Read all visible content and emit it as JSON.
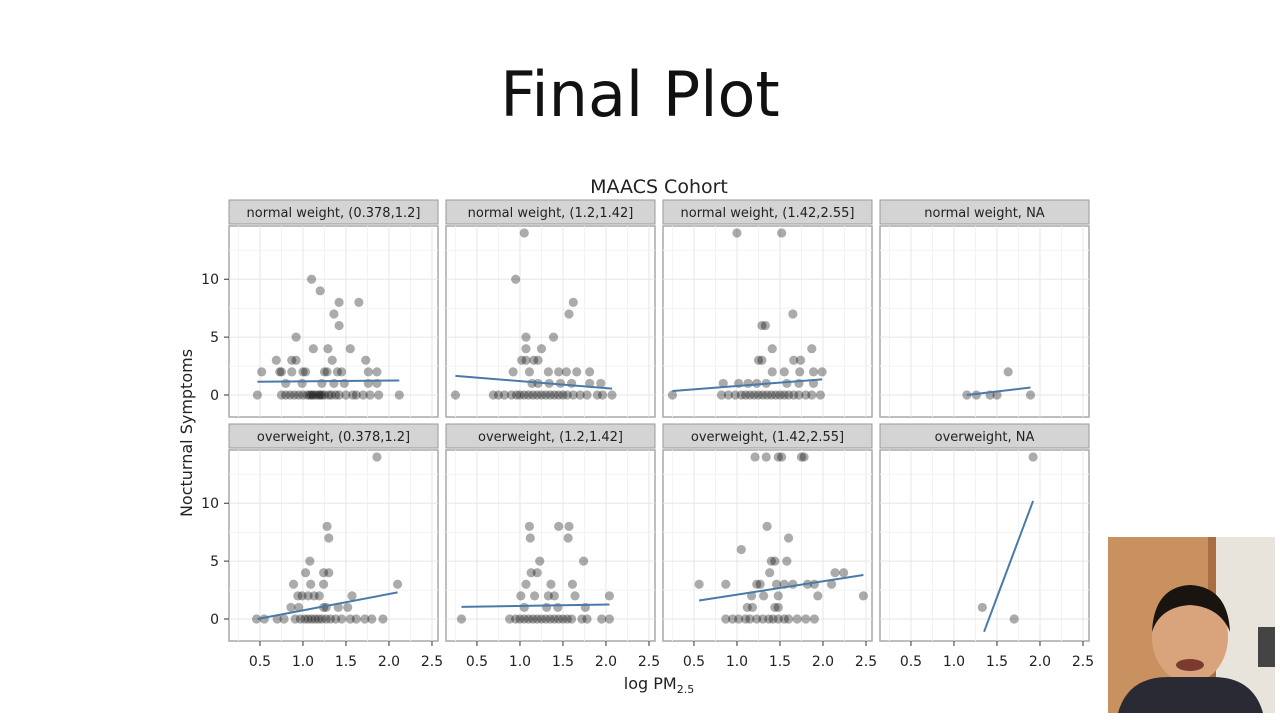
{
  "slide": {
    "title": "Final Plot"
  },
  "chart_data": {
    "type": "scatter",
    "facet": "grid 2 rows x 4 columns",
    "title": "MAACS Cohort",
    "xlabel": "log PM",
    "xlabel_subscript": "2.5",
    "ylabel": "Nocturnal Symptoms",
    "xlim": [
      0.14,
      2.57
    ],
    "ylim": [
      -1.9,
      14.6
    ],
    "xticks": [
      "0.5",
      "1.0",
      "1.5",
      "2.0",
      "2.5"
    ],
    "yticks": [
      "0",
      "5",
      "10"
    ],
    "grid": true,
    "point_color": "#000000",
    "point_alpha": 0.33,
    "line_color": "#4a7aa8",
    "strip_color": "#d4d4d4",
    "panels": [
      {
        "label": "normal weight, (0.378,1.2]",
        "points": [
          [
            1.1,
            10
          ],
          [
            1.2,
            9
          ],
          [
            1.42,
            8
          ],
          [
            1.65,
            8
          ],
          [
            1.36,
            7
          ],
          [
            1.42,
            6
          ],
          [
            0.92,
            5
          ],
          [
            1.12,
            4
          ],
          [
            1.29,
            4
          ],
          [
            1.55,
            4
          ],
          [
            0.69,
            3
          ],
          [
            0.87,
            3
          ],
          [
            0.92,
            3
          ],
          [
            1.34,
            3
          ],
          [
            1.73,
            3
          ],
          [
            0.52,
            2
          ],
          [
            0.73,
            2
          ],
          [
            0.75,
            2
          ],
          [
            0.87,
            2
          ],
          [
            1.0,
            2
          ],
          [
            1.03,
            2
          ],
          [
            1.25,
            2
          ],
          [
            1.28,
            2
          ],
          [
            1.4,
            2
          ],
          [
            1.45,
            2
          ],
          [
            1.76,
            2
          ],
          [
            1.86,
            2
          ],
          [
            0.8,
            1
          ],
          [
            0.99,
            1
          ],
          [
            1.22,
            1
          ],
          [
            1.36,
            1
          ],
          [
            1.48,
            1
          ],
          [
            1.76,
            1
          ],
          [
            1.86,
            1
          ],
          [
            0.47,
            0
          ],
          [
            0.75,
            0
          ],
          [
            0.8,
            0
          ],
          [
            0.85,
            0
          ],
          [
            0.9,
            0
          ],
          [
            0.95,
            0
          ],
          [
            1.0,
            0
          ],
          [
            1.05,
            0
          ],
          [
            1.08,
            0
          ],
          [
            1.1,
            0
          ],
          [
            1.12,
            0
          ],
          [
            1.15,
            0
          ],
          [
            1.18,
            0
          ],
          [
            1.2,
            0
          ],
          [
            1.22,
            0
          ],
          [
            1.25,
            0
          ],
          [
            1.3,
            0
          ],
          [
            1.33,
            0
          ],
          [
            1.38,
            0
          ],
          [
            1.42,
            0
          ],
          [
            1.5,
            0
          ],
          [
            1.58,
            0
          ],
          [
            1.62,
            0
          ],
          [
            1.7,
            0
          ],
          [
            1.78,
            0
          ],
          [
            1.88,
            0
          ],
          [
            2.12,
            0
          ]
        ],
        "fit": [
          [
            0.47,
            1.15
          ],
          [
            2.12,
            1.25
          ]
        ]
      },
      {
        "label": "normal weight, (1.2,1.42]",
        "points": [
          [
            1.05,
            14
          ],
          [
            0.95,
            10
          ],
          [
            1.62,
            8
          ],
          [
            1.57,
            7
          ],
          [
            1.07,
            5
          ],
          [
            1.39,
            5
          ],
          [
            1.07,
            4
          ],
          [
            1.25,
            4
          ],
          [
            1.02,
            3
          ],
          [
            1.07,
            3
          ],
          [
            1.16,
            3
          ],
          [
            1.21,
            3
          ],
          [
            0.92,
            2
          ],
          [
            1.11,
            2
          ],
          [
            1.33,
            2
          ],
          [
            1.45,
            2
          ],
          [
            1.54,
            2
          ],
          [
            1.66,
            2
          ],
          [
            1.81,
            2
          ],
          [
            1.14,
            1
          ],
          [
            1.21,
            1
          ],
          [
            1.34,
            1
          ],
          [
            1.47,
            1
          ],
          [
            1.6,
            1
          ],
          [
            1.81,
            1
          ],
          [
            1.94,
            1
          ],
          [
            0.25,
            0
          ],
          [
            0.69,
            0
          ],
          [
            0.75,
            0
          ],
          [
            0.82,
            0
          ],
          [
            0.9,
            0
          ],
          [
            0.96,
            0
          ],
          [
            1.0,
            0
          ],
          [
            1.05,
            0
          ],
          [
            1.1,
            0
          ],
          [
            1.15,
            0
          ],
          [
            1.2,
            0
          ],
          [
            1.25,
            0
          ],
          [
            1.3,
            0
          ],
          [
            1.35,
            0
          ],
          [
            1.4,
            0
          ],
          [
            1.45,
            0
          ],
          [
            1.5,
            0
          ],
          [
            1.55,
            0
          ],
          [
            1.62,
            0
          ],
          [
            1.7,
            0
          ],
          [
            1.78,
            0
          ],
          [
            1.9,
            0
          ],
          [
            1.96,
            0
          ],
          [
            2.07,
            0
          ]
        ],
        "fit": [
          [
            0.25,
            1.65
          ],
          [
            2.07,
            0.55
          ]
        ]
      },
      {
        "label": "normal weight, (1.42,2.55]",
        "points": [
          [
            1.0,
            14
          ],
          [
            1.52,
            14
          ],
          [
            1.65,
            7
          ],
          [
            1.29,
            6
          ],
          [
            1.33,
            6
          ],
          [
            1.41,
            4
          ],
          [
            1.87,
            4
          ],
          [
            1.25,
            3
          ],
          [
            1.29,
            3
          ],
          [
            1.66,
            3
          ],
          [
            1.74,
            3
          ],
          [
            1.41,
            2
          ],
          [
            1.55,
            2
          ],
          [
            1.73,
            2
          ],
          [
            1.89,
            2
          ],
          [
            1.99,
            2
          ],
          [
            0.84,
            1
          ],
          [
            1.02,
            1
          ],
          [
            1.13,
            1
          ],
          [
            1.23,
            1
          ],
          [
            1.34,
            1
          ],
          [
            1.58,
            1
          ],
          [
            1.72,
            1
          ],
          [
            1.89,
            1
          ],
          [
            0.25,
            0
          ],
          [
            0.82,
            0
          ],
          [
            0.9,
            0
          ],
          [
            0.98,
            0
          ],
          [
            1.05,
            0
          ],
          [
            1.1,
            0
          ],
          [
            1.15,
            0
          ],
          [
            1.2,
            0
          ],
          [
            1.25,
            0
          ],
          [
            1.3,
            0
          ],
          [
            1.35,
            0
          ],
          [
            1.4,
            0
          ],
          [
            1.45,
            0
          ],
          [
            1.5,
            0
          ],
          [
            1.55,
            0
          ],
          [
            1.6,
            0
          ],
          [
            1.66,
            0
          ],
          [
            1.72,
            0
          ],
          [
            1.8,
            0
          ],
          [
            1.87,
            0
          ],
          [
            1.97,
            0
          ]
        ],
        "fit": [
          [
            0.25,
            0.35
          ],
          [
            1.99,
            1.35
          ]
        ]
      },
      {
        "label": "normal weight, NA",
        "points": [
          [
            1.63,
            2
          ],
          [
            1.15,
            0
          ],
          [
            1.26,
            0
          ],
          [
            1.42,
            0
          ],
          [
            1.5,
            0
          ],
          [
            1.89,
            0
          ]
        ],
        "fit": [
          [
            1.15,
            0.0
          ],
          [
            1.89,
            0.65
          ]
        ]
      },
      {
        "label": "overweight, (0.378,1.2]",
        "points": [
          [
            1.86,
            14
          ],
          [
            1.28,
            8
          ],
          [
            1.3,
            7
          ],
          [
            1.08,
            5
          ],
          [
            1.03,
            4
          ],
          [
            1.24,
            4
          ],
          [
            1.3,
            4
          ],
          [
            0.89,
            3
          ],
          [
            1.09,
            3
          ],
          [
            1.24,
            3
          ],
          [
            2.1,
            3
          ],
          [
            0.94,
            2
          ],
          [
            0.99,
            2
          ],
          [
            1.06,
            2
          ],
          [
            1.13,
            2
          ],
          [
            1.19,
            2
          ],
          [
            1.57,
            2
          ],
          [
            0.86,
            1
          ],
          [
            0.95,
            1
          ],
          [
            1.24,
            1
          ],
          [
            1.27,
            1
          ],
          [
            1.41,
            1
          ],
          [
            1.52,
            1
          ],
          [
            0.46,
            0
          ],
          [
            0.55,
            0
          ],
          [
            0.7,
            0
          ],
          [
            0.78,
            0
          ],
          [
            0.91,
            0
          ],
          [
            0.97,
            0
          ],
          [
            1.02,
            0
          ],
          [
            1.06,
            0
          ],
          [
            1.1,
            0
          ],
          [
            1.14,
            0
          ],
          [
            1.18,
            0
          ],
          [
            1.22,
            0
          ],
          [
            1.27,
            0
          ],
          [
            1.32,
            0
          ],
          [
            1.38,
            0
          ],
          [
            1.45,
            0
          ],
          [
            1.55,
            0
          ],
          [
            1.62,
            0
          ],
          [
            1.72,
            0
          ],
          [
            1.8,
            0
          ],
          [
            1.93,
            0
          ]
        ],
        "fit": [
          [
            0.47,
            0.0
          ],
          [
            2.1,
            2.3
          ]
        ]
      },
      {
        "label": "overweight, (1.2,1.42]",
        "points": [
          [
            1.11,
            8
          ],
          [
            1.45,
            8
          ],
          [
            1.57,
            8
          ],
          [
            1.12,
            7
          ],
          [
            1.56,
            7
          ],
          [
            1.23,
            5
          ],
          [
            1.74,
            5
          ],
          [
            1.13,
            4
          ],
          [
            1.2,
            4
          ],
          [
            1.07,
            3
          ],
          [
            1.36,
            3
          ],
          [
            1.61,
            3
          ],
          [
            1.01,
            2
          ],
          [
            1.17,
            2
          ],
          [
            1.33,
            2
          ],
          [
            1.4,
            2
          ],
          [
            1.64,
            2
          ],
          [
            2.04,
            2
          ],
          [
            1.05,
            1
          ],
          [
            1.31,
            1
          ],
          [
            1.44,
            1
          ],
          [
            1.76,
            1
          ],
          [
            0.32,
            0
          ],
          [
            0.88,
            0
          ],
          [
            0.95,
            0
          ],
          [
            1.0,
            0
          ],
          [
            1.05,
            0
          ],
          [
            1.1,
            0
          ],
          [
            1.15,
            0
          ],
          [
            1.2,
            0
          ],
          [
            1.25,
            0
          ],
          [
            1.3,
            0
          ],
          [
            1.35,
            0
          ],
          [
            1.4,
            0
          ],
          [
            1.45,
            0
          ],
          [
            1.5,
            0
          ],
          [
            1.55,
            0
          ],
          [
            1.6,
            0
          ],
          [
            1.72,
            0
          ],
          [
            1.78,
            0
          ],
          [
            1.95,
            0
          ],
          [
            2.04,
            0
          ]
        ],
        "fit": [
          [
            0.32,
            1.05
          ],
          [
            2.04,
            1.25
          ]
        ]
      },
      {
        "label": "overweight, (1.42,2.55]",
        "points": [
          [
            1.21,
            14
          ],
          [
            1.34,
            14
          ],
          [
            1.48,
            14
          ],
          [
            1.52,
            14
          ],
          [
            1.75,
            14
          ],
          [
            1.78,
            14
          ],
          [
            1.35,
            8
          ],
          [
            1.6,
            7
          ],
          [
            1.05,
            6
          ],
          [
            1.4,
            5
          ],
          [
            1.44,
            5
          ],
          [
            1.58,
            5
          ],
          [
            1.38,
            4
          ],
          [
            2.14,
            4
          ],
          [
            2.24,
            4
          ],
          [
            0.56,
            3
          ],
          [
            0.87,
            3
          ],
          [
            1.23,
            3
          ],
          [
            1.27,
            3
          ],
          [
            1.46,
            3
          ],
          [
            1.55,
            3
          ],
          [
            1.65,
            3
          ],
          [
            1.82,
            3
          ],
          [
            1.9,
            3
          ],
          [
            2.1,
            3
          ],
          [
            1.17,
            2
          ],
          [
            1.31,
            2
          ],
          [
            1.48,
            2
          ],
          [
            1.94,
            2
          ],
          [
            2.47,
            2
          ],
          [
            1.12,
            1
          ],
          [
            1.18,
            1
          ],
          [
            1.44,
            1
          ],
          [
            1.48,
            1
          ],
          [
            0.87,
            0
          ],
          [
            0.95,
            0
          ],
          [
            1.02,
            0
          ],
          [
            1.1,
            0
          ],
          [
            1.15,
            0
          ],
          [
            1.23,
            0
          ],
          [
            1.3,
            0
          ],
          [
            1.37,
            0
          ],
          [
            1.42,
            0
          ],
          [
            1.48,
            0
          ],
          [
            1.55,
            0
          ],
          [
            1.6,
            0
          ],
          [
            1.7,
            0
          ],
          [
            1.8,
            0
          ],
          [
            1.9,
            0
          ]
        ],
        "fit": [
          [
            0.56,
            1.6
          ],
          [
            2.47,
            3.8
          ]
        ]
      },
      {
        "label": "overweight, NA",
        "points": [
          [
            1.92,
            14
          ],
          [
            1.33,
            1
          ],
          [
            1.7,
            0
          ]
        ],
        "fit": [
          [
            1.35,
            -1.1
          ],
          [
            1.92,
            10.2
          ]
        ]
      }
    ]
  }
}
